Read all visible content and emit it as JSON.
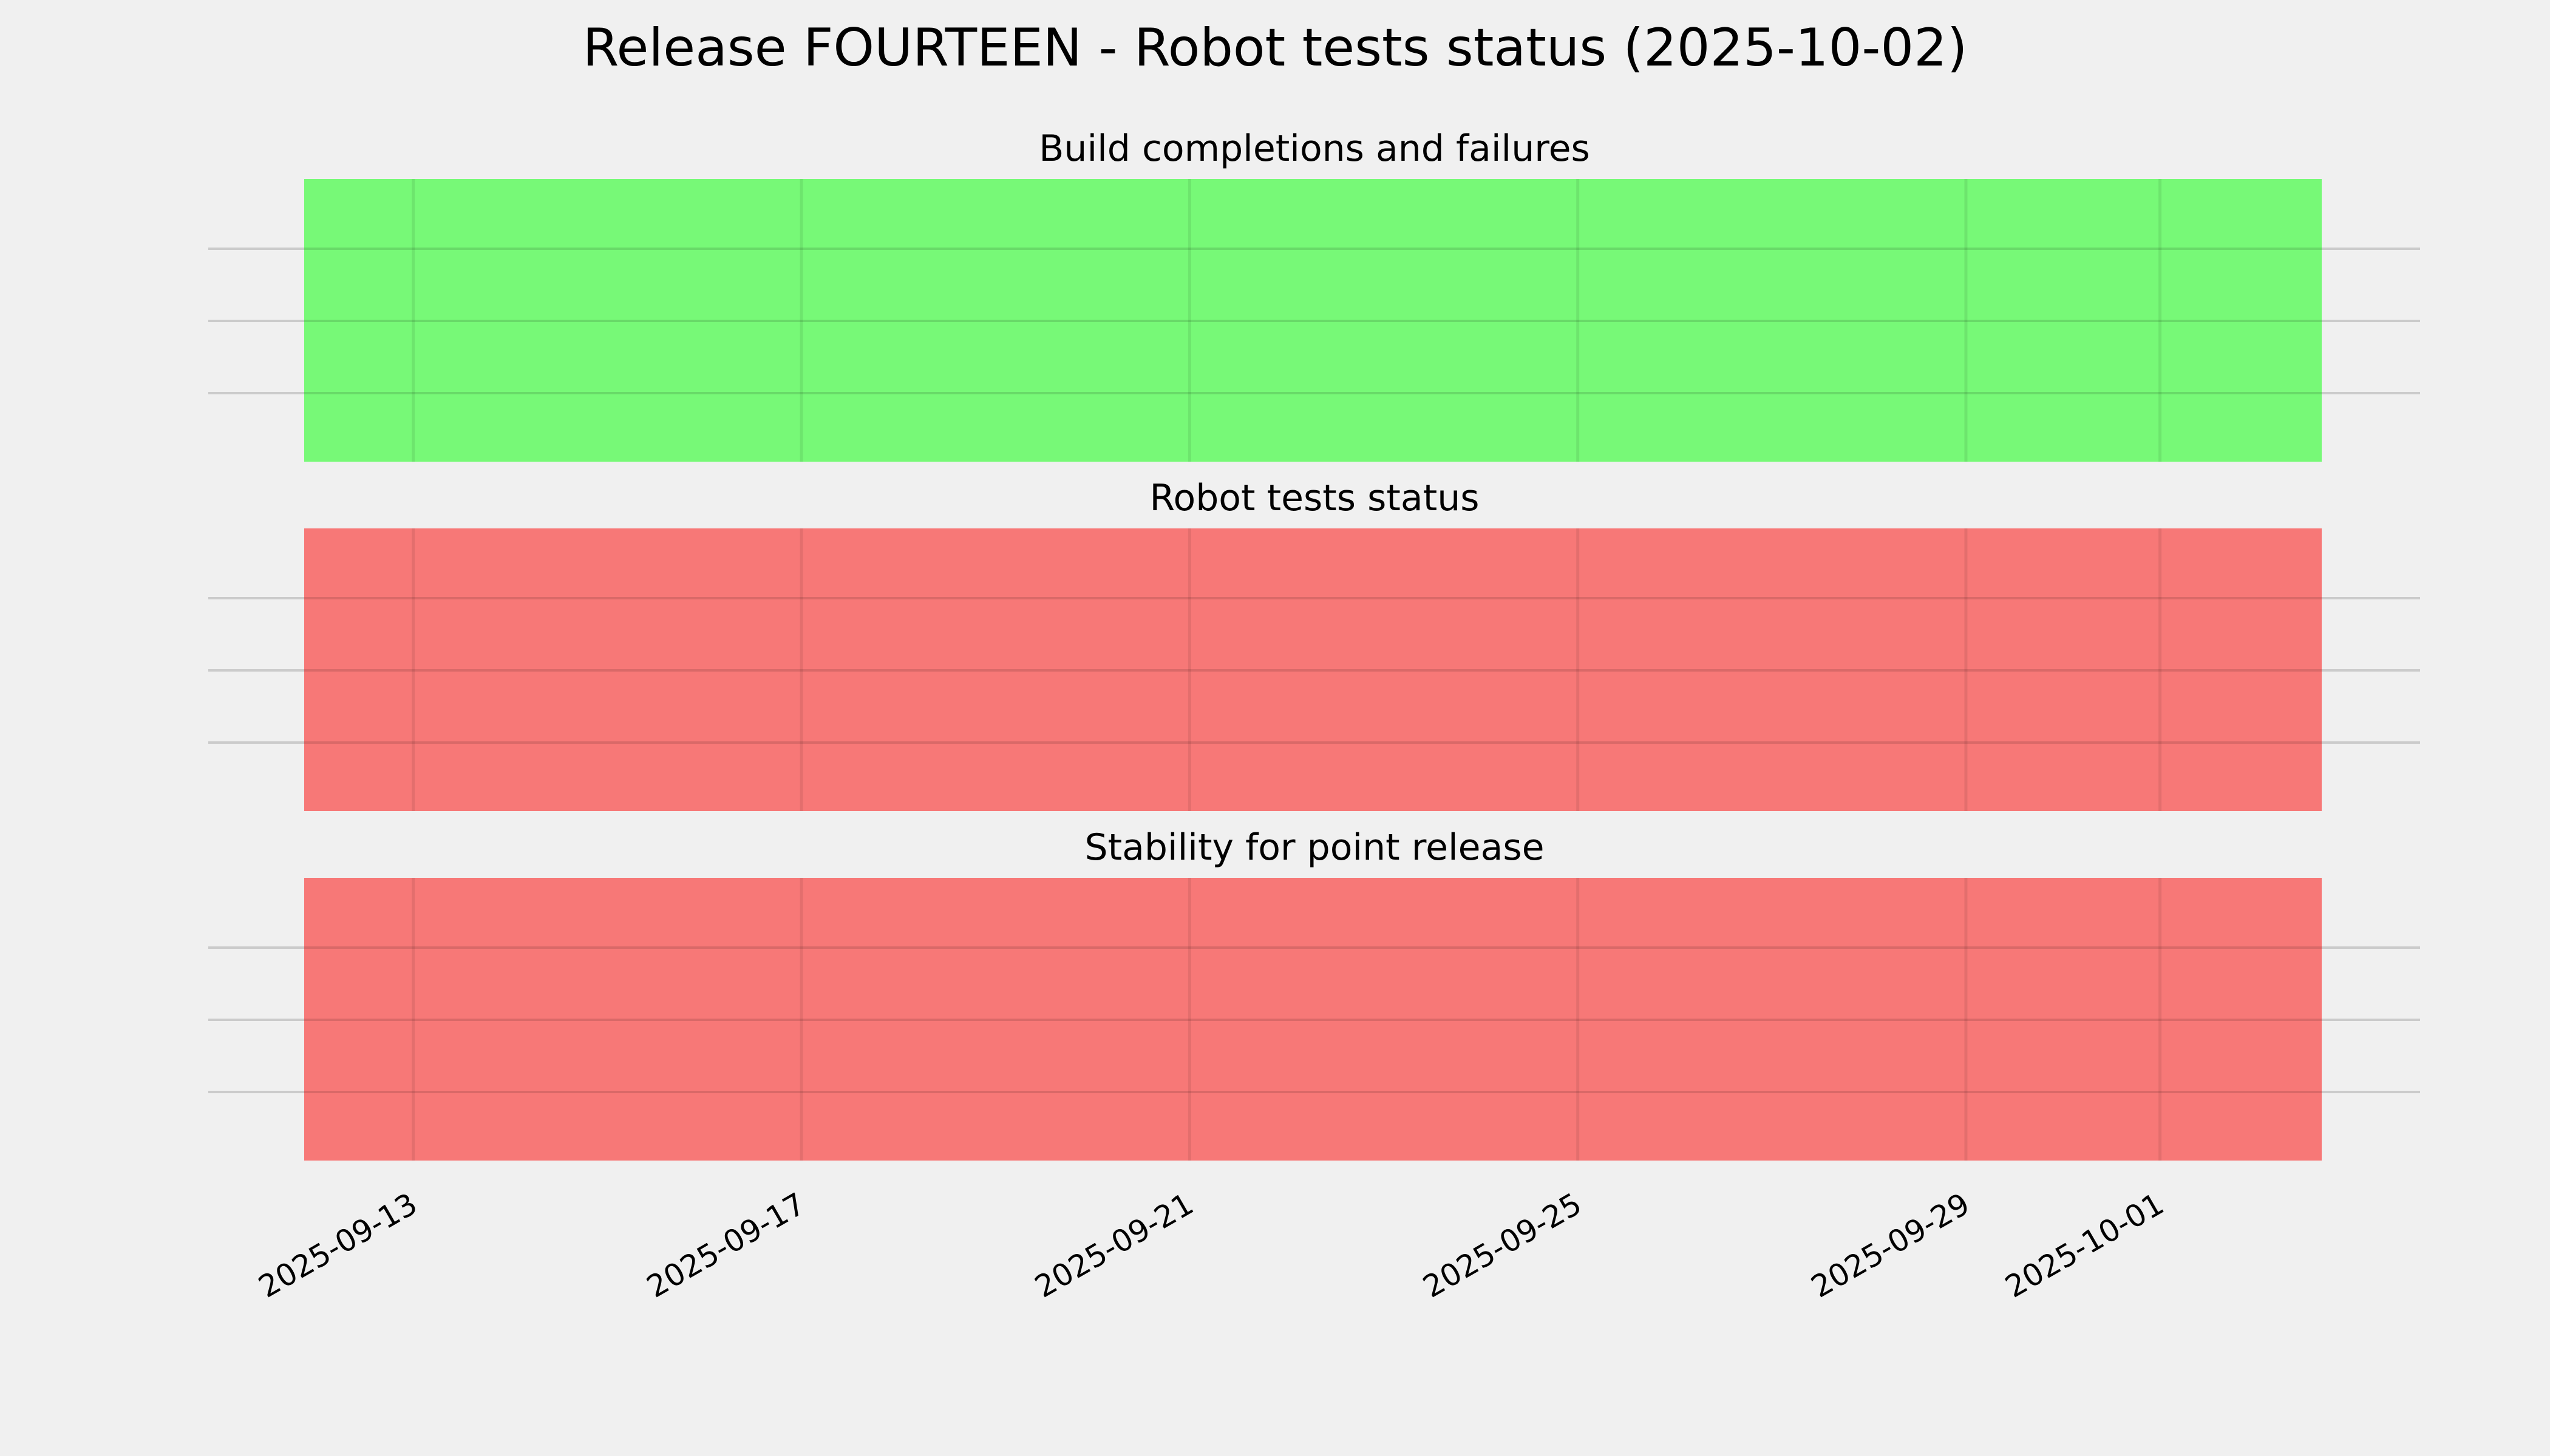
{
  "title": "Release FOURTEEN - Robot tests status (2025-10-02)",
  "colors": {
    "background": "#f0f0f0",
    "pass": "#77f977",
    "fail": "#f77877",
    "grid": "#cbcbcb"
  },
  "chart_data": {
    "type": "timeline-status",
    "xlim": [
      "2025-09-11T21:00",
      "2025-10-02T16:00"
    ],
    "x_ticks": [
      "2025-09-13",
      "2025-09-17",
      "2025-09-21",
      "2025-09-25",
      "2025-09-29",
      "2025-10-01"
    ],
    "grid": true,
    "panels": [
      {
        "title": "Build completions and failures",
        "spans": [
          {
            "start": "2025-09-11T21:00",
            "end": "2025-10-02T16:00",
            "status": "pass"
          }
        ]
      },
      {
        "title": "Robot tests status",
        "spans": [
          {
            "start": "2025-09-11T21:00",
            "end": "2025-10-02T16:00",
            "status": "fail"
          }
        ]
      },
      {
        "title": "Stability for point release",
        "spans": [
          {
            "start": "2025-09-11T21:00",
            "end": "2025-10-02T16:00",
            "status": "fail"
          }
        ]
      }
    ]
  }
}
